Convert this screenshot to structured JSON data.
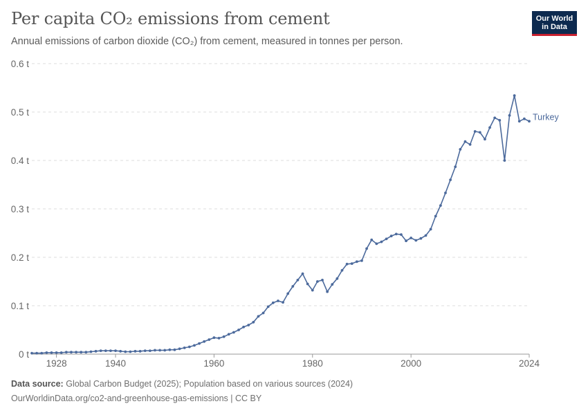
{
  "header": {
    "title": "Per capita CO₂ emissions from cement",
    "subtitle": "Annual emissions of carbon dioxide (CO₂) from cement, measured in tonnes per person."
  },
  "logo": {
    "line1": "Our World",
    "line2": "in Data"
  },
  "footer": {
    "source_label": "Data source:",
    "source_text": "Global Carbon Budget (2025); Population based on various sources (2024)",
    "link": "OurWorldinData.org/co2-and-greenhouse-gas-emissions | CC BY"
  },
  "colors": {
    "line": "#4c6a9c",
    "grid": "#dddddd",
    "text": "#666666",
    "brand": "#0d2a4f",
    "brand_accent": "#c8202f"
  },
  "chart_data": {
    "type": "line",
    "title": "Per capita CO₂ emissions from cement",
    "xlabel": "",
    "ylabel": "",
    "xlim": [
      1923,
      2024
    ],
    "ylim": [
      0,
      0.6
    ],
    "x_ticks": [
      1928,
      1940,
      1960,
      1980,
      2000,
      2024
    ],
    "x_tick_labels": [
      "1928",
      "1940",
      "1960",
      "1980",
      "2000",
      "2024"
    ],
    "y_ticks": [
      0,
      0.1,
      0.2,
      0.3,
      0.4,
      0.5,
      0.6
    ],
    "y_tick_labels": [
      "0 t",
      "0.1 t",
      "0.2 t",
      "0.3 t",
      "0.4 t",
      "0.5 t",
      "0.6 t"
    ],
    "grid": "horizontal dashed",
    "legend": "inline label at line end",
    "series": [
      {
        "name": "Turkey",
        "x": [
          1923,
          1924,
          1925,
          1926,
          1927,
          1928,
          1929,
          1930,
          1931,
          1932,
          1933,
          1934,
          1935,
          1936,
          1937,
          1938,
          1939,
          1940,
          1941,
          1942,
          1943,
          1944,
          1945,
          1946,
          1947,
          1948,
          1949,
          1950,
          1951,
          1952,
          1953,
          1954,
          1955,
          1956,
          1957,
          1958,
          1959,
          1960,
          1961,
          1962,
          1963,
          1964,
          1965,
          1966,
          1967,
          1968,
          1969,
          1970,
          1971,
          1972,
          1973,
          1974,
          1975,
          1976,
          1977,
          1978,
          1979,
          1980,
          1981,
          1982,
          1983,
          1984,
          1985,
          1986,
          1987,
          1988,
          1989,
          1990,
          1991,
          1992,
          1993,
          1994,
          1995,
          1996,
          1997,
          1998,
          1999,
          2000,
          2001,
          2002,
          2003,
          2004,
          2005,
          2006,
          2007,
          2008,
          2009,
          2010,
          2011,
          2012,
          2013,
          2014,
          2015,
          2016,
          2017,
          2018,
          2019,
          2020,
          2021,
          2022,
          2023,
          2024
        ],
        "y": [
          0.002,
          0.002,
          0.002,
          0.003,
          0.003,
          0.003,
          0.003,
          0.004,
          0.004,
          0.004,
          0.004,
          0.004,
          0.005,
          0.006,
          0.007,
          0.007,
          0.007,
          0.007,
          0.006,
          0.005,
          0.005,
          0.006,
          0.006,
          0.007,
          0.007,
          0.008,
          0.008,
          0.008,
          0.009,
          0.009,
          0.011,
          0.013,
          0.015,
          0.018,
          0.022,
          0.026,
          0.03,
          0.034,
          0.033,
          0.036,
          0.041,
          0.045,
          0.05,
          0.056,
          0.06,
          0.066,
          0.078,
          0.085,
          0.098,
          0.106,
          0.11,
          0.107,
          0.125,
          0.14,
          0.153,
          0.166,
          0.145,
          0.132,
          0.15,
          0.153,
          0.129,
          0.144,
          0.156,
          0.173,
          0.186,
          0.187,
          0.191,
          0.193,
          0.218,
          0.236,
          0.228,
          0.232,
          0.238,
          0.244,
          0.248,
          0.247,
          0.234,
          0.24,
          0.235,
          0.239,
          0.245,
          0.258,
          0.285,
          0.307,
          0.333,
          0.36,
          0.387,
          0.423,
          0.439,
          0.433,
          0.46,
          0.458,
          0.444,
          0.468,
          0.488,
          0.483,
          0.4,
          0.493,
          0.534,
          0.481,
          0.486,
          0.481
        ]
      }
    ]
  }
}
